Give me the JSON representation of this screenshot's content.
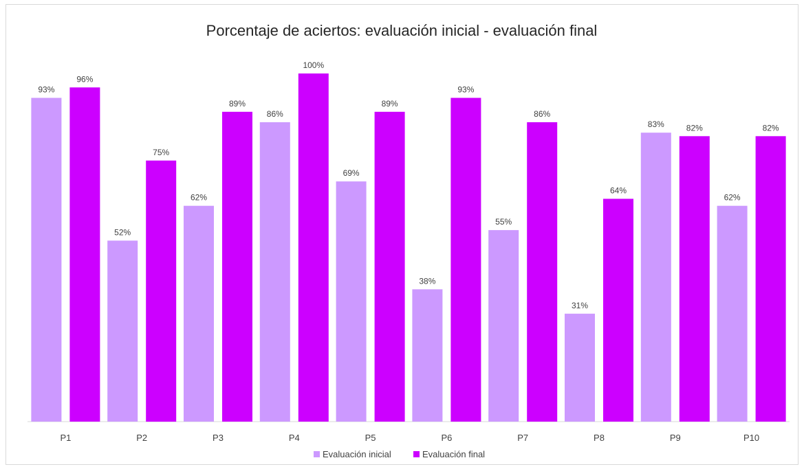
{
  "chart_data": {
    "type": "bar",
    "title": "Porcentaje de aciertos: evaluación inicial - evaluación final",
    "xlabel": "",
    "ylabel": "",
    "categories": [
      "P1",
      "P2",
      "P3",
      "P4",
      "P5",
      "P6",
      "P7",
      "P8",
      "P9",
      "P10"
    ],
    "series": [
      {
        "name": "Evaluación inicial",
        "color": "#cc99ff",
        "values": [
          93,
          52,
          62,
          86,
          69,
          38,
          55,
          31,
          83,
          62
        ],
        "labels": [
          "93%",
          "52%",
          "62%",
          "86%",
          "69%",
          "38%",
          "55%",
          "31%",
          "83%",
          "62%"
        ]
      },
      {
        "name": "Evaluación final",
        "color": "#cc00ff",
        "values": [
          96,
          75,
          89,
          100,
          89,
          93,
          86,
          64,
          82,
          82
        ],
        "labels": [
          "96%",
          "75%",
          "89%",
          "100%",
          "89%",
          "93%",
          "86%",
          "64%",
          "82%",
          "82%"
        ]
      }
    ],
    "ylim": [
      0,
      100
    ],
    "grid": false,
    "legend": "bottom"
  }
}
